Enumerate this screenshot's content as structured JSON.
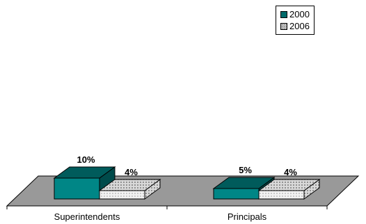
{
  "chart_data": {
    "type": "bar",
    "title": "",
    "xlabel": "",
    "ylabel": "",
    "categories": [
      "Superintendents",
      "Principals"
    ],
    "series": [
      {
        "name": "2000",
        "values": [
          10,
          5
        ],
        "labels": [
          "10%",
          "5%"
        ],
        "color": "#006b6b"
      },
      {
        "name": "2006",
        "values": [
          4,
          4
        ],
        "labels": [
          "4%",
          "4%"
        ],
        "color": "#c0c0c0"
      }
    ],
    "ylim": [
      0,
      100
    ],
    "grid": false,
    "legend": "top-right",
    "floor_color": "#999999"
  }
}
